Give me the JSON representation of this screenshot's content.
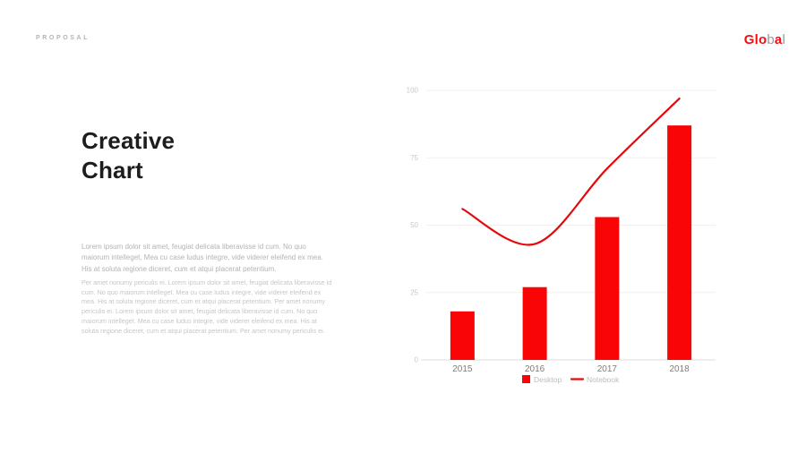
{
  "slide": {
    "kicker": "PROPOSAL",
    "logo": {
      "part_bold": "Glo",
      "part_gray1": "b",
      "part_accent": "a",
      "part_gray2": "l"
    },
    "title_line1": "Creative",
    "title_line2": "Chart",
    "paragraph1": "Lorem ipsum dolor sit amet, feugiat delicata liberavisse id cum. No quo maiorum intelleget, Mea cu case ludus integre, vide viderer eleifend ex mea. His at soluta regione diceret, cum et atqui placerat petentium.",
    "paragraph2": "Per amet nonumy periculis ei. Lorem ipsum dolor sit amet, feugiat delicata liberavisse id cum. No quo maiorum intelleget. Mea cu case ludus integre, vide viderer eleifend ex mea. His at soluta regione diceret, cum et atqui placerat petentium. Per amet nonumy periculis ei. Lorem ipsum dolor sit amet, feugiat delicata liberavisse id cum. No quo maiorum intelleget. Mea cu case ludus integre, vide viderer eleifend ex mea. His at soluta regione diceret, cum et atqui placerat petentium. Per amet nonumy periculis ei."
  },
  "colors": {
    "accent_red": "#f90505",
    "line_red": "#e6080b",
    "heading": "#1d1d1d",
    "muted_text": "#b3b3b3"
  },
  "chart_data": {
    "type": "bar",
    "title": "",
    "xlabel": "",
    "ylabel": "",
    "categories": [
      "2015",
      "2016",
      "2017",
      "2018"
    ],
    "series": [
      {
        "name": "Desktop",
        "type": "bar",
        "values": [
          18,
          27,
          53,
          87
        ],
        "color": "#f90505"
      },
      {
        "name": "Notebook",
        "type": "line",
        "values": [
          56,
          43,
          71,
          97
        ],
        "color": "#e6080b"
      }
    ],
    "ylim": [
      0,
      100
    ],
    "yticks": [
      0,
      25,
      50,
      75,
      100
    ],
    "grid": true,
    "legend_position": "bottom",
    "grid_color": "#f0f0f0",
    "axis_line_color": "#dedede",
    "axis_text_color": "#c9c9c9",
    "xaxis_text_color": "#7d7d7d",
    "legend_text_color": "#bdbdbd"
  }
}
